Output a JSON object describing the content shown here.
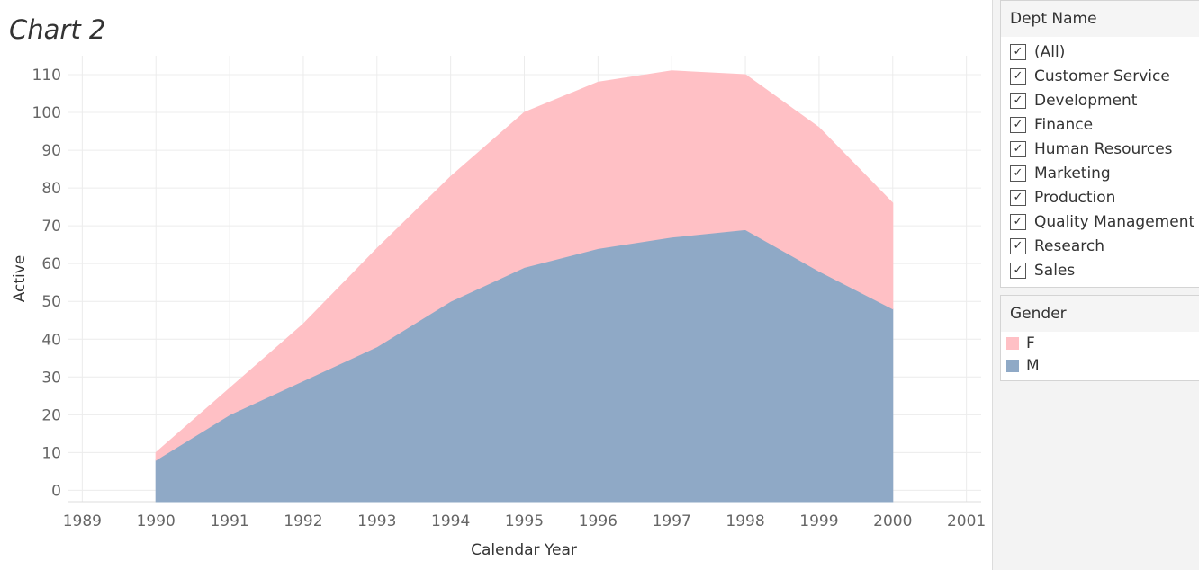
{
  "chart_data": {
    "type": "area",
    "stacked": true,
    "title": "Chart 2",
    "xlabel": "Calendar Year",
    "ylabel": "Active",
    "x_ticks": [
      1989,
      1990,
      1991,
      1992,
      1993,
      1994,
      1995,
      1996,
      1997,
      1998,
      1999,
      2000,
      2001
    ],
    "y_ticks": [
      0,
      10,
      20,
      30,
      40,
      50,
      60,
      70,
      80,
      90,
      100,
      110
    ],
    "x": [
      1990,
      1991,
      1992,
      1993,
      1994,
      1995,
      1996,
      1997,
      1998,
      1999,
      2000
    ],
    "xlim": [
      1988.8,
      2001.2
    ],
    "ylim": [
      -3,
      115
    ],
    "grid": true,
    "legend_position": "right",
    "series": [
      {
        "name": "M",
        "color": "#8fa9c6",
        "values": [
          8,
          20,
          29,
          38,
          50,
          59,
          64,
          67,
          69,
          58,
          48
        ]
      },
      {
        "name": "F",
        "color": "#ffc0c5",
        "values": [
          2,
          7,
          15,
          26,
          33,
          41,
          44,
          44,
          41,
          38,
          28
        ]
      }
    ]
  },
  "filter": {
    "title": "Dept Name",
    "items": [
      "(All)",
      "Customer Service",
      "Development",
      "Finance",
      "Human Resources",
      "Marketing",
      "Production",
      "Quality Management",
      "Research",
      "Sales"
    ],
    "check_glyph": "✓"
  },
  "legend": {
    "title": "Gender",
    "items": [
      {
        "label": "F",
        "color": "#ffc0c5"
      },
      {
        "label": "M",
        "color": "#8fa9c6"
      }
    ]
  }
}
